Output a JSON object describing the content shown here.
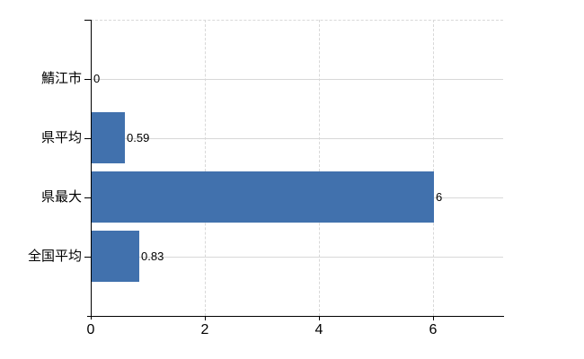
{
  "chart_data": {
    "type": "bar",
    "orientation": "horizontal",
    "title": "",
    "xlabel": "",
    "ylabel": "",
    "categories": [
      "鯖江市",
      "県平均",
      "県最大",
      "全国平均"
    ],
    "values": [
      0,
      0.59,
      6,
      0.83
    ],
    "data_labels": [
      "0",
      "0.59",
      "6",
      "0.83"
    ],
    "x_ticks": [
      0,
      2,
      4,
      6
    ],
    "x_tick_labels": [
      "0",
      "2",
      "4",
      "6"
    ],
    "xlim": [
      0,
      7.23
    ],
    "grid": true,
    "legend": false,
    "bar_color": "#4171ad",
    "gridline_color": "#d8d8d8",
    "axis_color": "#000000",
    "text_color": "#000000",
    "background_color": "#ffffff"
  }
}
